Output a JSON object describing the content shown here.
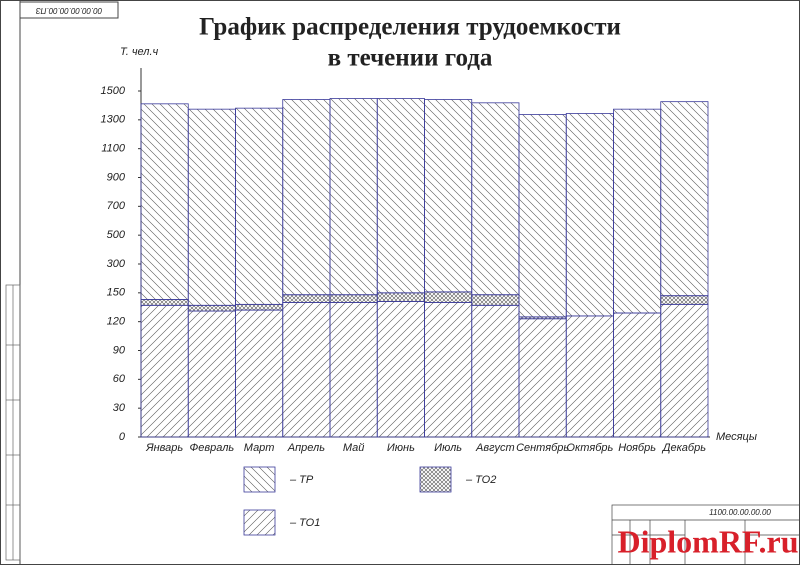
{
  "document_code": "00.00.00.00.00.ПЗ",
  "stamp_code": "1100.00.00.00.00",
  "watermark": "DiplomRF.ru",
  "chart_data": {
    "type": "stacked_bar",
    "title": [
      "График распределения трудоемкости",
      "в течении года"
    ],
    "y_label": "Т. чел.ч",
    "x_label": "Месяцы",
    "categories": [
      "Январь",
      "Февраль",
      "Март",
      "Апрель",
      "Май",
      "Июнь",
      "Июль",
      "Август",
      "Сентябрь",
      "Октябрь",
      "Ноябрь",
      "Декабрь"
    ],
    "series": [
      {
        "name": "– ТО1",
        "color": "#3a3a9a",
        "hatch": "forward",
        "values": [
          137,
          131,
          132,
          140,
          140,
          141,
          140,
          137,
          123,
          126,
          129,
          138
        ]
      },
      {
        "name": "– ТО2",
        "color": "#3a3a9a",
        "hatch": "cross",
        "values": [
          6,
          6,
          6,
          8,
          8,
          9,
          15,
          11,
          2,
          0,
          0,
          9
        ]
      },
      {
        "name": "– ТР",
        "color": "#3a3a9a",
        "hatch": "back",
        "values": [
          1268,
          1237,
          1243,
          1293,
          1300,
          1298,
          1286,
          1270,
          1212,
          1218,
          1245,
          1279
        ]
      }
    ],
    "ylim": [
      0,
      1500
    ],
    "yticks": [
      0,
      30,
      60,
      90,
      120,
      150,
      300,
      500,
      700,
      900,
      1100,
      1300,
      1500
    ],
    "scale": "piecewise"
  }
}
